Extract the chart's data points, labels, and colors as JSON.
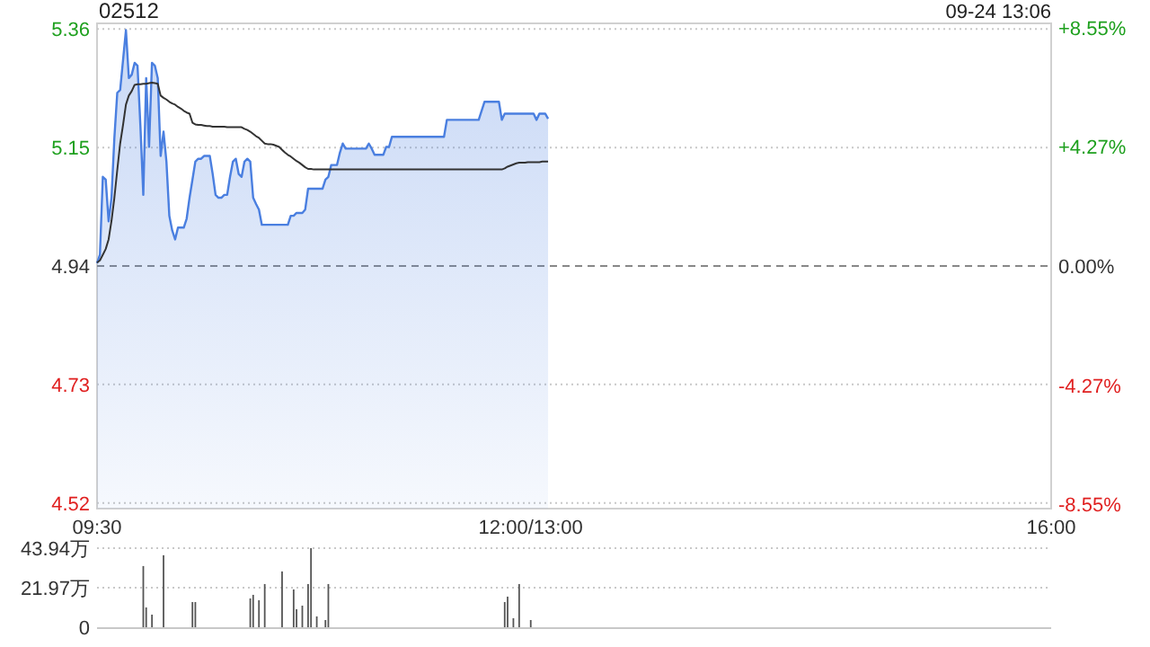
{
  "chart_data": [
    {
      "type": "area",
      "title": "02512",
      "annotations": [
        "09-24 13:06"
      ],
      "categories": [
        "09:30",
        null,
        null,
        null,
        null,
        null,
        null,
        null,
        null,
        null,
        null,
        null,
        null,
        null,
        null,
        null,
        null,
        null,
        null,
        null,
        null,
        null,
        null,
        null,
        null,
        null,
        null,
        null,
        null,
        null,
        null,
        null,
        null,
        null,
        null,
        null,
        null,
        null,
        null,
        null,
        null,
        null,
        null,
        null,
        null,
        null,
        null,
        null,
        null,
        null,
        null,
        null,
        null,
        null,
        null,
        null,
        null,
        null,
        null,
        null,
        null,
        null,
        null,
        null,
        null,
        null,
        null,
        null,
        null,
        null,
        null,
        null,
        null,
        null,
        null,
        null,
        null,
        null,
        null,
        null,
        null,
        null,
        null,
        null,
        null,
        null,
        null,
        null,
        null,
        null,
        null,
        null,
        null,
        null,
        null,
        null,
        null,
        null,
        null,
        null,
        null,
        null,
        null,
        null,
        null,
        null,
        null,
        null,
        null,
        null,
        null,
        null,
        null,
        null,
        null,
        null,
        null,
        null,
        null,
        null,
        null,
        null,
        null,
        null,
        null,
        null,
        null,
        null,
        null,
        null,
        null,
        null,
        null,
        null,
        null,
        null,
        null,
        null,
        null,
        null,
        null,
        null,
        null,
        null,
        null,
        null,
        null,
        null,
        null,
        null,
        "12:00/13:00",
        null,
        null,
        null,
        null,
        null,
        null,
        null,
        null,
        null,
        null,
        null,
        null,
        null,
        null,
        null,
        null,
        null,
        null,
        null,
        null,
        null,
        null,
        null,
        null,
        null,
        null,
        null,
        null,
        null,
        null,
        null,
        null,
        null,
        null,
        null,
        null,
        null,
        null,
        null,
        null,
        null,
        null,
        null,
        null,
        null,
        null,
        null,
        null,
        null,
        null,
        null,
        null,
        null,
        null,
        null,
        null,
        null,
        null,
        null,
        null,
        null,
        null,
        null,
        null,
        null,
        null,
        null,
        null,
        null,
        null,
        null,
        null,
        null,
        null,
        null,
        null,
        null,
        null,
        null,
        null,
        null,
        null,
        null,
        null,
        null,
        null,
        null,
        null,
        null,
        null,
        null,
        null,
        null,
        null,
        null,
        null,
        null,
        null,
        null,
        null,
        null,
        null,
        null,
        null,
        null,
        null,
        null,
        null,
        null,
        null,
        null,
        null,
        null,
        null,
        null,
        null,
        null,
        null,
        null,
        null,
        null,
        null,
        null,
        null,
        null,
        null,
        null,
        null,
        null,
        null,
        null,
        null,
        null,
        null,
        null,
        null,
        null,
        null,
        null,
        null,
        null,
        null,
        null,
        null,
        null,
        null,
        null,
        null,
        null,
        null,
        null,
        null,
        null,
        null,
        null,
        null,
        null,
        null,
        null,
        null,
        null,
        null,
        null,
        null,
        null,
        null,
        null,
        null,
        null,
        null,
        null,
        null,
        null,
        null,
        null,
        null,
        null,
        null,
        null,
        "16:00"
      ],
      "ylim": [
        4.51,
        5.37
      ],
      "yticks": [
        4.52,
        4.73,
        4.94,
        5.15,
        5.36
      ],
      "y2lim": [
        -8.7,
        8.7
      ],
      "y2ticks": [
        {
          "value": 8.55,
          "label": "+8.55%"
        },
        {
          "value": 4.27,
          "label": "+4.27%"
        },
        {
          "value": 0,
          "label": "0.00%"
        },
        {
          "value": -4.27,
          "label": "-4.27%"
        },
        {
          "value": -8.55,
          "label": "-8.55%"
        }
      ],
      "grid": "y",
      "ref_lines": [
        {
          "axis": "y",
          "value": 4.94,
          "line_style": "dashed"
        }
      ],
      "series": [
        {
          "color": "#4a7fe0",
          "values": [
            4.945,
            4.96,
            5.098,
            5.093,
            5.019,
            5.061,
            5.167,
            5.247,
            5.252,
            5.305,
            5.358,
            5.273,
            5.279,
            5.3,
            5.295,
            5.188,
            5.066,
            5.273,
            5.151,
            5.3,
            5.295,
            5.273,
            5.135,
            5.178,
            5.125,
            5.029,
            5.003,
            4.987,
            5.008,
            5.008,
            5.008,
            5.024,
            5.061,
            5.093,
            5.125,
            5.13,
            5.13,
            5.135,
            5.135,
            5.135,
            5.103,
            5.066,
            5.061,
            5.061,
            5.066,
            5.066,
            5.098,
            5.125,
            5.13,
            5.103,
            5.098,
            5.125,
            5.13,
            5.125,
            5.061,
            5.05,
            5.04,
            5.013,
            5.013,
            5.013,
            5.013,
            5.013,
            5.013,
            5.013,
            5.013,
            5.013,
            5.013,
            5.029,
            5.029,
            5.034,
            5.034,
            5.034,
            5.04,
            5.077,
            5.077,
            5.077,
            5.077,
            5.077,
            5.077,
            5.093,
            5.098,
            5.119,
            5.119,
            5.119,
            5.141,
            5.157,
            5.148,
            5.148,
            5.148,
            5.148,
            5.148,
            5.148,
            5.148,
            5.148,
            5.157,
            5.148,
            5.137,
            5.137,
            5.137,
            5.137,
            5.151,
            5.151,
            5.169,
            5.169,
            5.169,
            5.169,
            5.169,
            5.169,
            5.169,
            5.169,
            5.169,
            5.169,
            5.169,
            5.169,
            5.169,
            5.169,
            5.169,
            5.169,
            5.169,
            5.169,
            5.169,
            5.199,
            5.199,
            5.199,
            5.199,
            5.199,
            5.199,
            5.199,
            5.199,
            5.199,
            5.199,
            5.199,
            5.199,
            5.215,
            5.231,
            5.231,
            5.231,
            5.231,
            5.231,
            5.231,
            5.199,
            5.21,
            5.21,
            5.21,
            5.21,
            5.21,
            5.21,
            5.21,
            5.21,
            5.21,
            5.21,
            5.21,
            5.199,
            5.21,
            5.21,
            5.21,
            5.201,
            null,
            null,
            null,
            null,
            null,
            null,
            null,
            null,
            null,
            null,
            null,
            null,
            null,
            null,
            null,
            null,
            null,
            null,
            null,
            null,
            null,
            null,
            null,
            null,
            null,
            null,
            null,
            null,
            null,
            null,
            null,
            null,
            null,
            null,
            null,
            null,
            null,
            null,
            null,
            null,
            null,
            null,
            null,
            null,
            null,
            null,
            null,
            null,
            null,
            null,
            null,
            null,
            null,
            null,
            null,
            null,
            null,
            null,
            null,
            null,
            null,
            null,
            null,
            null,
            null,
            null,
            null,
            null,
            null,
            null,
            null,
            null,
            null,
            null,
            null,
            null,
            null,
            null,
            null,
            null,
            null,
            null,
            null,
            null,
            null,
            null,
            null,
            null,
            null,
            null,
            null,
            null,
            null,
            null,
            null,
            null,
            null,
            null,
            null,
            null,
            null,
            null,
            null,
            null,
            null,
            null,
            null,
            null,
            null,
            null,
            null,
            null,
            null,
            null,
            null,
            null,
            null,
            null,
            null,
            null,
            null,
            null,
            null,
            null,
            null,
            null,
            null,
            null,
            null,
            null,
            null,
            null,
            null,
            null,
            null,
            null,
            null,
            null,
            null,
            null,
            null,
            null,
            null,
            null,
            null,
            null,
            null,
            null,
            null,
            null,
            null,
            null,
            null,
            null,
            null,
            null,
            null,
            null,
            null,
            null,
            null,
            null,
            null,
            null,
            null,
            null,
            null,
            null,
            null,
            null,
            null,
            null,
            null,
            null
          ]
        },
        {
          "type": "line",
          "color": "#333333",
          "values": [
            4.946,
            4.95,
            4.96,
            4.97,
            4.987,
            5.02,
            5.061,
            5.11,
            5.157,
            5.19,
            5.226,
            5.242,
            5.25,
            5.261,
            5.262,
            5.262,
            5.263,
            5.263,
            5.264,
            5.265,
            5.264,
            5.263,
            5.242,
            5.238,
            5.235,
            5.231,
            5.228,
            5.226,
            5.222,
            5.219,
            5.215,
            5.212,
            5.21,
            5.194,
            5.191,
            5.19,
            5.19,
            5.189,
            5.188,
            5.188,
            5.187,
            5.187,
            5.187,
            5.187,
            5.187,
            5.186,
            5.186,
            5.186,
            5.186,
            5.186,
            5.186,
            5.183,
            5.181,
            5.178,
            5.174,
            5.17,
            5.167,
            5.162,
            5.157,
            5.156,
            5.156,
            5.155,
            5.153,
            5.151,
            5.146,
            5.141,
            5.137,
            5.134,
            5.13,
            5.126,
            5.123,
            5.119,
            5.115,
            5.112,
            5.112,
            5.111,
            5.111,
            5.111,
            5.111,
            5.111,
            5.111,
            5.111,
            5.111,
            5.111,
            5.111,
            5.111,
            5.111,
            5.111,
            5.111,
            5.111,
            5.111,
            5.111,
            5.111,
            5.111,
            5.111,
            5.111,
            5.111,
            5.111,
            5.111,
            5.111,
            5.111,
            5.111,
            5.111,
            5.111,
            5.111,
            5.111,
            5.111,
            5.111,
            5.111,
            5.111,
            5.111,
            5.111,
            5.111,
            5.111,
            5.111,
            5.111,
            5.111,
            5.111,
            5.111,
            5.111,
            5.111,
            5.111,
            5.111,
            5.111,
            5.111,
            5.111,
            5.111,
            5.111,
            5.111,
            5.111,
            5.111,
            5.111,
            5.111,
            5.111,
            5.111,
            5.111,
            5.111,
            5.111,
            5.111,
            5.111,
            5.111,
            5.113,
            5.116,
            5.118,
            5.12,
            5.122,
            5.123,
            5.123,
            5.123,
            5.124,
            5.124,
            5.124,
            5.124,
            5.124,
            5.125,
            5.125,
            5.125,
            null,
            null,
            null,
            null,
            null,
            null,
            null,
            null,
            null,
            null,
            null,
            null,
            null,
            null,
            null,
            null,
            null,
            null,
            null,
            null,
            null,
            null,
            null,
            null,
            null,
            null,
            null,
            null,
            null,
            null,
            null,
            null,
            null,
            null,
            null,
            null,
            null,
            null,
            null,
            null,
            null,
            null,
            null,
            null,
            null,
            null,
            null,
            null,
            null,
            null,
            null,
            null,
            null,
            null,
            null,
            null,
            null,
            null,
            null,
            null,
            null,
            null,
            null,
            null,
            null,
            null,
            null,
            null,
            null,
            null,
            null,
            null,
            null,
            null,
            null,
            null,
            null,
            null,
            null,
            null,
            null,
            null,
            null,
            null,
            null,
            null,
            null,
            null,
            null,
            null,
            null,
            null,
            null,
            null,
            null,
            null,
            null,
            null,
            null,
            null,
            null,
            null,
            null,
            null,
            null,
            null,
            null,
            null,
            null,
            null,
            null,
            null,
            null,
            null,
            null,
            null,
            null,
            null,
            null,
            null,
            null,
            null,
            null,
            null,
            null,
            null,
            null,
            null,
            null,
            null,
            null,
            null,
            null,
            null,
            null,
            null,
            null,
            null,
            null,
            null,
            null,
            null,
            null,
            null,
            null,
            null,
            null,
            null,
            null,
            null,
            null,
            null,
            null,
            null,
            null,
            null,
            null,
            null,
            null,
            null,
            null,
            null,
            null,
            null,
            null,
            null,
            null,
            null,
            null,
            null,
            null,
            null,
            null,
            null
          ]
        }
      ]
    },
    {
      "type": "bar",
      "color": "#555555",
      "tick_labels": "y",
      "grid": "y",
      "categories": [
        null,
        null,
        null,
        null,
        null,
        null,
        null,
        null,
        null,
        null,
        null,
        null,
        null,
        null,
        null,
        null,
        null,
        null,
        null,
        null,
        null,
        null,
        null,
        null,
        null,
        null,
        null,
        null,
        null,
        null,
        null,
        null,
        null,
        null,
        null,
        null,
        null,
        null,
        null,
        null,
        null,
        null,
        null,
        null,
        null,
        null,
        null,
        null,
        null,
        null,
        null,
        null,
        null,
        null,
        null,
        null,
        null,
        null,
        null,
        null,
        null,
        null,
        null,
        null,
        null,
        null,
        null,
        null,
        null,
        null,
        null,
        null,
        null,
        null,
        null,
        null,
        null,
        null,
        null,
        null,
        null,
        null,
        null,
        null,
        null,
        null,
        null,
        null,
        null,
        null,
        null,
        null,
        null,
        null,
        null,
        null,
        null,
        null,
        null,
        null,
        null,
        null,
        null,
        null,
        null,
        null,
        null,
        null,
        null,
        null,
        null,
        null,
        null,
        null,
        null,
        null,
        null,
        null,
        null,
        null,
        null,
        null,
        null,
        null,
        null,
        null,
        null,
        null,
        null,
        null,
        null,
        null,
        null,
        null,
        null,
        null,
        null,
        null,
        null,
        null,
        null,
        null,
        null,
        null,
        null,
        null,
        null,
        null,
        null,
        null,
        null,
        null,
        null,
        null,
        null,
        null,
        null,
        null,
        null,
        null,
        null,
        null,
        null,
        null,
        null,
        null,
        null,
        null,
        null,
        null,
        null,
        null,
        null,
        null,
        null,
        null,
        null,
        null,
        null,
        null,
        null,
        null,
        null,
        null,
        null,
        null,
        null,
        null,
        null,
        null,
        null,
        null,
        null,
        null,
        null,
        null,
        null,
        null,
        null,
        null,
        null,
        null,
        null,
        null,
        null,
        null,
        null,
        null,
        null,
        null,
        null,
        null,
        null,
        null,
        null,
        null,
        null,
        null,
        null,
        null,
        null,
        null,
        null,
        null,
        null,
        null,
        null,
        null,
        null,
        null,
        null,
        null,
        null,
        null,
        null,
        null,
        null,
        null,
        null,
        null,
        null,
        null,
        null,
        null,
        null,
        null,
        null,
        null,
        null,
        null,
        null,
        null,
        null,
        null,
        null,
        null,
        null,
        null,
        null,
        null,
        null,
        null,
        null,
        null,
        null,
        null,
        null,
        null,
        null,
        null,
        null,
        null,
        null,
        null,
        null,
        null,
        null,
        null,
        null,
        null,
        null,
        null,
        null,
        null,
        null,
        null,
        null,
        null,
        null,
        null,
        null,
        null,
        null,
        null,
        null,
        null,
        null,
        null,
        null,
        null,
        null,
        null,
        null,
        null,
        null,
        null,
        null,
        null,
        null,
        null,
        null,
        null,
        null,
        null,
        null,
        null,
        null,
        null,
        null,
        null,
        null,
        null,
        null,
        null,
        null,
        null,
        null,
        null,
        null,
        null,
        null
      ],
      "ylim": [
        0,
        43.94
      ],
      "yticks": [
        0,
        {
          "value": 21.97,
          "label": "21.97万"
        },
        {
          "value": 43.94,
          "label": "43.94万"
        }
      ],
      "values": [
        0,
        null,
        0,
        null,
        0,
        0,
        0,
        null,
        0,
        0,
        null,
        null,
        null,
        0,
        null,
        0,
        34,
        11,
        null,
        7,
        null,
        0,
        0,
        40,
        0,
        0,
        null,
        null,
        null,
        0,
        null,
        0,
        0,
        14,
        14,
        0,
        null,
        0,
        null,
        0,
        0,
        null,
        0,
        0,
        0,
        null,
        0,
        0,
        0,
        null,
        0,
        0,
        0,
        16,
        18,
        0,
        15,
        0,
        24,
        null,
        0,
        0,
        0,
        null,
        31,
        null,
        0,
        0,
        21,
        10,
        null,
        12,
        0,
        24,
        43.94,
        0,
        6,
        0,
        0,
        4,
        24,
        0,
        0,
        0,
        0,
        0,
        null,
        0,
        0,
        0,
        0,
        0,
        0,
        0,
        0,
        null,
        0,
        0,
        0,
        0,
        0,
        0,
        0,
        0,
        0,
        null,
        0,
        0,
        0,
        0,
        0,
        0,
        0,
        0,
        0,
        null,
        0,
        0,
        0,
        0,
        0,
        0,
        null,
        0,
        0,
        0,
        0,
        0,
        0,
        0,
        0,
        0,
        0,
        0,
        null,
        0,
        null,
        0,
        0,
        0,
        0,
        14,
        17,
        0,
        5,
        0,
        24,
        0,
        0,
        null,
        4,
        0,
        null,
        0,
        null,
        null,
        0,
        null,
        null,
        null,
        null,
        null,
        null,
        null,
        null,
        null,
        null,
        null,
        null,
        null,
        null,
        null,
        null,
        null,
        null,
        null,
        null,
        null,
        null,
        null,
        null,
        null,
        null,
        null,
        null,
        null,
        null,
        null,
        null,
        null,
        null,
        null,
        null,
        null,
        null,
        null,
        null,
        null,
        null,
        null,
        null,
        null,
        null,
        null,
        null,
        null,
        null,
        null,
        null,
        null,
        null,
        null,
        null,
        null,
        null,
        null,
        null,
        null,
        null,
        null,
        null,
        null,
        null,
        null,
        null,
        null,
        null,
        null,
        null,
        null,
        null,
        null,
        null,
        null,
        null,
        null,
        null,
        null,
        null,
        null,
        null,
        null,
        null,
        null,
        null,
        null,
        null,
        null,
        null,
        null,
        null,
        null,
        null,
        null,
        null,
        null,
        null,
        null,
        null,
        null,
        null,
        null,
        null,
        null,
        null,
        null,
        null,
        null,
        null,
        null,
        null,
        null,
        null,
        null,
        null,
        null,
        null,
        null,
        null,
        null,
        null,
        null,
        null,
        null,
        null,
        null,
        null,
        null,
        null,
        null,
        null,
        null,
        null,
        null,
        null,
        null,
        null,
        null,
        null,
        null,
        null,
        null,
        null,
        null,
        null,
        null,
        null,
        null,
        null,
        null,
        null,
        null,
        null,
        null,
        null,
        null,
        null,
        null,
        null,
        null,
        null,
        null,
        null,
        null,
        null,
        null,
        null,
        null,
        null,
        null,
        null
      ]
    }
  ]
}
